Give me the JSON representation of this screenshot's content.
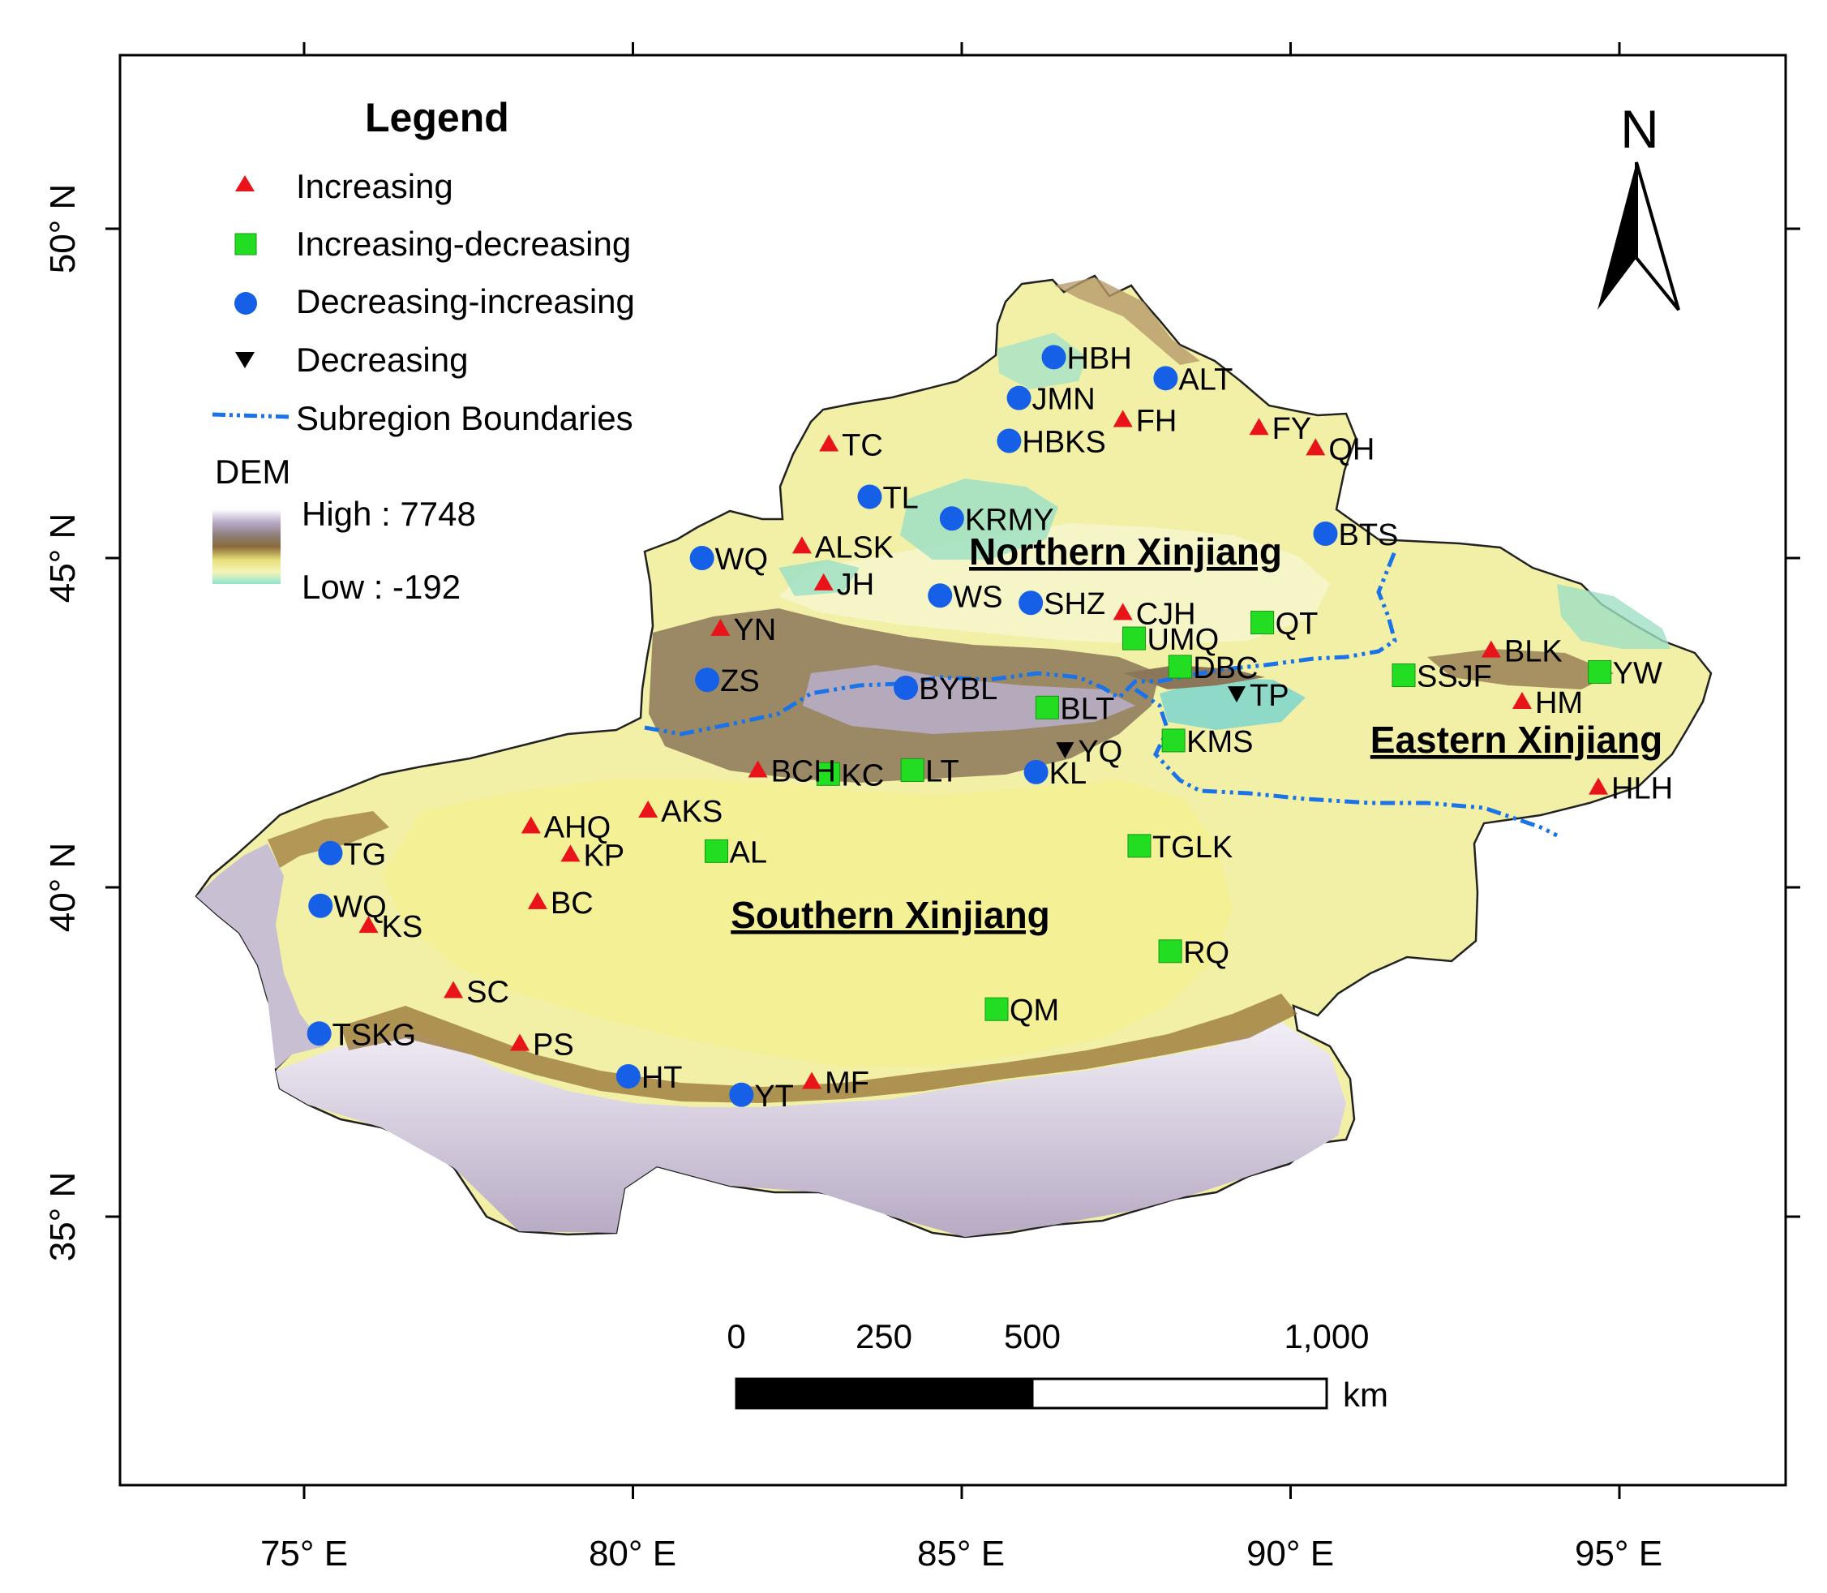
{
  "map": {
    "longitude_ticks": [
      "75° E",
      "80° E",
      "85° E",
      "90° E",
      "95° E"
    ],
    "latitude_ticks": [
      "50° N",
      "45° N",
      "40° N",
      "35° N"
    ],
    "north_arrow": {
      "label": "N",
      "icon": "north-arrow-icon"
    },
    "legend": {
      "title": "Legend",
      "items": [
        {
          "label": "Increasing",
          "symbol": "triangle-up",
          "color": "#e8141a"
        },
        {
          "label": "Increasing-decreasing",
          "symbol": "square",
          "color": "#22dd22"
        },
        {
          "label": "Decreasing-increasing",
          "symbol": "circle",
          "color": "#1560e6"
        },
        {
          "label": "Decreasing",
          "symbol": "triangle-down",
          "color": "#000000"
        },
        {
          "label": "Subregion Boundaries",
          "symbol": "dash-dot-line",
          "color": "#1a73e8"
        }
      ],
      "dem_title": "DEM",
      "dem_high": "High : 7748",
      "dem_low": "Low : -192"
    },
    "regions": [
      "Northern Xinjiang",
      "Eastern Xinjiang",
      "Southern Xinjiang"
    ],
    "scale_bar": {
      "ticks": [
        "0",
        "250",
        "500",
        "1,000"
      ],
      "unit": "km"
    },
    "stations": [
      {
        "name": "HBH",
        "type": "decreasing-increasing",
        "lon": 86.4,
        "lat": 48.05
      },
      {
        "name": "ALT",
        "type": "decreasing-increasing",
        "lon": 88.1,
        "lat": 47.73
      },
      {
        "name": "JMN",
        "type": "decreasing-increasing",
        "lon": 85.87,
        "lat": 47.43
      },
      {
        "name": "FH",
        "type": "increasing",
        "lon": 87.45,
        "lat": 47.1
      },
      {
        "name": "FY",
        "type": "increasing",
        "lon": 89.52,
        "lat": 46.98
      },
      {
        "name": "QH",
        "type": "increasing",
        "lon": 90.38,
        "lat": 46.67
      },
      {
        "name": "TC",
        "type": "increasing",
        "lon": 82.98,
        "lat": 46.73
      },
      {
        "name": "HBKS",
        "type": "decreasing-increasing",
        "lon": 85.72,
        "lat": 46.78
      },
      {
        "name": "TL",
        "type": "decreasing-increasing",
        "lon": 83.6,
        "lat": 45.93
      },
      {
        "name": "KRMY",
        "type": "decreasing-increasing",
        "lon": 84.85,
        "lat": 45.6
      },
      {
        "name": "BTS",
        "type": "decreasing-increasing",
        "lon": 90.53,
        "lat": 45.37
      },
      {
        "name": "WQ",
        "type": "decreasing-increasing",
        "lon": 81.05,
        "lat": 45.0
      },
      {
        "name": "ALSK",
        "type": "increasing",
        "lon": 82.57,
        "lat": 45.18
      },
      {
        "name": "JH",
        "type": "increasing",
        "lon": 82.9,
        "lat": 44.62
      },
      {
        "name": "WS",
        "type": "decreasing-increasing",
        "lon": 84.67,
        "lat": 44.43
      },
      {
        "name": "SHZ",
        "type": "decreasing-increasing",
        "lon": 86.05,
        "lat": 44.32
      },
      {
        "name": "CJH",
        "type": "increasing",
        "lon": 87.45,
        "lat": 44.17
      },
      {
        "name": "QT",
        "type": "increasing-decreasing",
        "lon": 89.57,
        "lat": 44.02
      },
      {
        "name": "YN",
        "type": "increasing",
        "lon": 81.33,
        "lat": 43.93
      },
      {
        "name": "UMQ",
        "type": "increasing-decreasing",
        "lon": 87.62,
        "lat": 43.78
      },
      {
        "name": "DBC",
        "type": "increasing-decreasing",
        "lon": 88.32,
        "lat": 43.35
      },
      {
        "name": "BLK",
        "type": "increasing",
        "lon": 93.05,
        "lat": 43.6
      },
      {
        "name": "SSJF",
        "type": "increasing-decreasing",
        "lon": 91.72,
        "lat": 43.22
      },
      {
        "name": "YW",
        "type": "increasing-decreasing",
        "lon": 94.7,
        "lat": 43.27
      },
      {
        "name": "ZS",
        "type": "decreasing-increasing",
        "lon": 81.13,
        "lat": 43.15
      },
      {
        "name": "BYBL",
        "type": "decreasing-increasing",
        "lon": 84.15,
        "lat": 43.03
      },
      {
        "name": "TP",
        "type": "decreasing",
        "lon": 89.18,
        "lat": 42.93
      },
      {
        "name": "HM",
        "type": "increasing",
        "lon": 93.52,
        "lat": 42.82
      },
      {
        "name": "BLT",
        "type": "increasing-decreasing",
        "lon": 86.3,
        "lat": 42.73
      },
      {
        "name": "KMS",
        "type": "increasing-decreasing",
        "lon": 88.22,
        "lat": 42.23
      },
      {
        "name": "YQ",
        "type": "decreasing",
        "lon": 86.57,
        "lat": 42.08
      },
      {
        "name": "KC",
        "type": "increasing-decreasing",
        "lon": 82.97,
        "lat": 41.72
      },
      {
        "name": "LT",
        "type": "increasing-decreasing",
        "lon": 84.25,
        "lat": 41.78
      },
      {
        "name": "KL",
        "type": "decreasing-increasing",
        "lon": 86.13,
        "lat": 41.75
      },
      {
        "name": "BCH",
        "type": "increasing",
        "lon": 81.9,
        "lat": 41.78
      },
      {
        "name": "HLH",
        "type": "increasing",
        "lon": 94.68,
        "lat": 41.52
      },
      {
        "name": "AKS",
        "type": "increasing",
        "lon": 80.23,
        "lat": 41.17
      },
      {
        "name": "AHQ",
        "type": "increasing",
        "lon": 78.45,
        "lat": 40.93
      },
      {
        "name": "AL",
        "type": "increasing-decreasing",
        "lon": 81.27,
        "lat": 40.55
      },
      {
        "name": "TGLK",
        "type": "increasing-decreasing",
        "lon": 87.7,
        "lat": 40.63
      },
      {
        "name": "TG",
        "type": "decreasing-increasing",
        "lon": 75.4,
        "lat": 40.52
      },
      {
        "name": "KP",
        "type": "increasing",
        "lon": 79.05,
        "lat": 40.5
      },
      {
        "name": "WQ",
        "type": "decreasing-increasing",
        "lon": 75.25,
        "lat": 39.72
      },
      {
        "name": "BC",
        "type": "increasing",
        "lon": 78.55,
        "lat": 39.78
      },
      {
        "name": "KS",
        "type": "increasing",
        "lon": 75.98,
        "lat": 39.42
      },
      {
        "name": "RQ",
        "type": "increasing-decreasing",
        "lon": 88.17,
        "lat": 39.03
      },
      {
        "name": "SC",
        "type": "increasing",
        "lon": 77.27,
        "lat": 38.43
      },
      {
        "name": "QM",
        "type": "increasing-decreasing",
        "lon": 85.53,
        "lat": 38.15
      },
      {
        "name": "TSKG",
        "type": "decreasing-increasing",
        "lon": 75.23,
        "lat": 37.78
      },
      {
        "name": "PS",
        "type": "increasing",
        "lon": 78.28,
        "lat": 37.63
      },
      {
        "name": "HT",
        "type": "decreasing-increasing",
        "lon": 79.93,
        "lat": 37.13
      },
      {
        "name": "YT",
        "type": "decreasing-increasing",
        "lon": 81.65,
        "lat": 36.85
      },
      {
        "name": "MF",
        "type": "increasing",
        "lon": 82.72,
        "lat": 37.05
      }
    ]
  }
}
